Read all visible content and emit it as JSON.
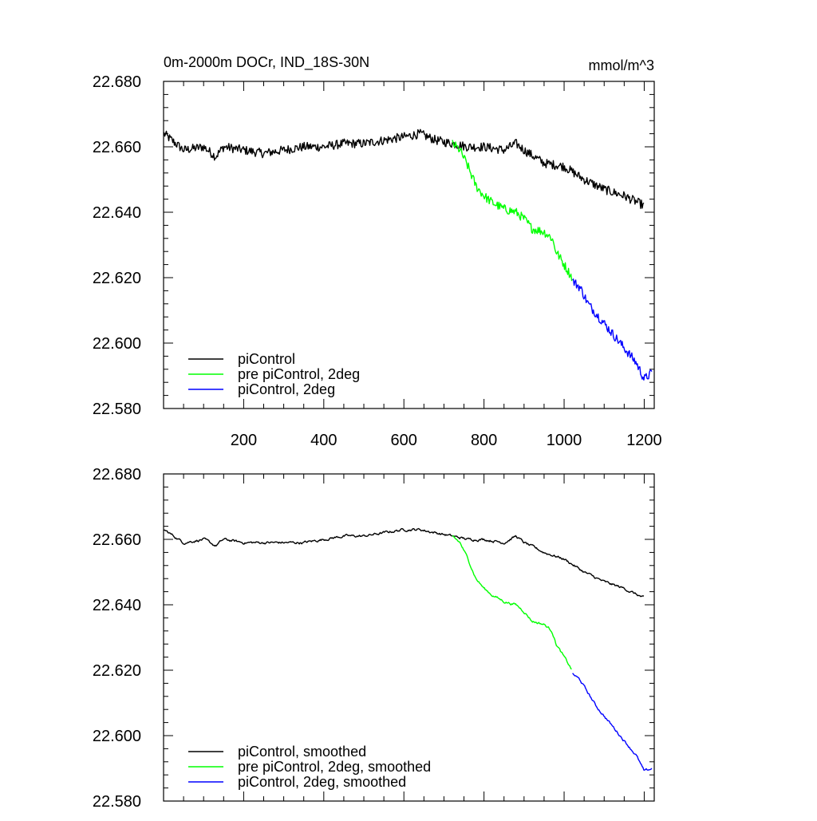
{
  "chart_data": [
    {
      "type": "line",
      "panel": "top",
      "title": "0m-2000m DOCr, IND_18S-30N",
      "units": "mmol/m^3",
      "xlim": [
        0,
        1225
      ],
      "ylim": [
        22.58,
        22.68
      ],
      "x_ticks": [
        200,
        400,
        600,
        800,
        1000,
        1200
      ],
      "x_tick_labels": [
        "200",
        "400",
        "600",
        "800",
        "1000",
        "1200"
      ],
      "y_ticks": [
        22.58,
        22.6,
        22.62,
        22.64,
        22.66,
        22.68
      ],
      "y_tick_labels": [
        "22.580",
        "22.600",
        "22.620",
        "22.640",
        "22.660",
        "22.680"
      ],
      "smoothed": false,
      "legend_position": "bottom-left",
      "series": [
        {
          "name": "piControl",
          "color": "#000000",
          "points": [
            [
              1,
              22.664
            ],
            [
              50,
              22.659
            ],
            [
              100,
              22.66
            ],
            [
              130,
              22.657
            ],
            [
              150,
              22.66
            ],
            [
              200,
              22.659
            ],
            [
              250,
              22.658
            ],
            [
              300,
              22.659
            ],
            [
              350,
              22.66
            ],
            [
              400,
              22.66
            ],
            [
              450,
              22.661
            ],
            [
              500,
              22.661
            ],
            [
              550,
              22.662
            ],
            [
              600,
              22.663
            ],
            [
              640,
              22.664
            ],
            [
              680,
              22.662
            ],
            [
              720,
              22.661
            ],
            [
              760,
              22.66
            ],
            [
              800,
              22.66
            ],
            [
              850,
              22.659
            ],
            [
              880,
              22.661
            ],
            [
              900,
              22.659
            ],
            [
              950,
              22.655
            ],
            [
              1000,
              22.654
            ],
            [
              1050,
              22.65
            ],
            [
              1100,
              22.647
            ],
            [
              1150,
              22.645
            ],
            [
              1200,
              22.642
            ]
          ]
        },
        {
          "name": "pre piControl, 2deg",
          "color": "#00ff00",
          "points": [
            [
              721,
              22.661
            ],
            [
              740,
              22.659
            ],
            [
              760,
              22.654
            ],
            [
              780,
              22.648
            ],
            [
              800,
              22.645
            ],
            [
              820,
              22.643
            ],
            [
              850,
              22.641
            ],
            [
              880,
              22.64
            ],
            [
              900,
              22.638
            ],
            [
              920,
              22.635
            ],
            [
              950,
              22.634
            ],
            [
              970,
              22.632
            ],
            [
              980,
              22.628
            ],
            [
              1000,
              22.624
            ],
            [
              1020,
              22.62
            ]
          ]
        },
        {
          "name": "piControl, 2deg",
          "color": "#0000ff",
          "points": [
            [
              1021,
              22.619
            ],
            [
              1040,
              22.617
            ],
            [
              1060,
              22.612
            ],
            [
              1080,
              22.609
            ],
            [
              1100,
              22.606
            ],
            [
              1120,
              22.603
            ],
            [
              1140,
              22.6
            ],
            [
              1160,
              22.597
            ],
            [
              1180,
              22.594
            ],
            [
              1200,
              22.589
            ],
            [
              1220,
              22.591
            ]
          ]
        }
      ]
    },
    {
      "type": "line",
      "panel": "bottom",
      "xlim": [
        0,
        1225
      ],
      "ylim": [
        22.58,
        22.68
      ],
      "y_ticks": [
        22.58,
        22.6,
        22.62,
        22.64,
        22.66,
        22.68
      ],
      "y_tick_labels": [
        "22.580",
        "22.600",
        "22.620",
        "22.640",
        "22.660",
        "22.680"
      ],
      "smoothed": true,
      "legend_position": "bottom-left",
      "series": [
        {
          "name": "piControl, smoothed",
          "color": "#000000",
          "points": [
            [
              1,
              22.663
            ],
            [
              50,
              22.659
            ],
            [
              100,
              22.66
            ],
            [
              130,
              22.658
            ],
            [
              150,
              22.66
            ],
            [
              200,
              22.659
            ],
            [
              250,
              22.659
            ],
            [
              300,
              22.659
            ],
            [
              350,
              22.659
            ],
            [
              400,
              22.66
            ],
            [
              450,
              22.661
            ],
            [
              500,
              22.661
            ],
            [
              550,
              22.662
            ],
            [
              600,
              22.663
            ],
            [
              640,
              22.663
            ],
            [
              680,
              22.662
            ],
            [
              720,
              22.661
            ],
            [
              760,
              22.66
            ],
            [
              800,
              22.66
            ],
            [
              850,
              22.659
            ],
            [
              880,
              22.661
            ],
            [
              900,
              22.659
            ],
            [
              950,
              22.656
            ],
            [
              1000,
              22.654
            ],
            [
              1050,
              22.65
            ],
            [
              1100,
              22.647
            ],
            [
              1150,
              22.645
            ],
            [
              1200,
              22.642
            ]
          ]
        },
        {
          "name": "pre piControl, 2deg, smoothed",
          "color": "#00ff00",
          "points": [
            [
              721,
              22.661
            ],
            [
              740,
              22.659
            ],
            [
              760,
              22.654
            ],
            [
              780,
              22.648
            ],
            [
              800,
              22.645
            ],
            [
              820,
              22.643
            ],
            [
              850,
              22.641
            ],
            [
              880,
              22.64
            ],
            [
              900,
              22.638
            ],
            [
              920,
              22.635
            ],
            [
              950,
              22.634
            ],
            [
              970,
              22.632
            ],
            [
              980,
              22.628
            ],
            [
              1000,
              22.624
            ],
            [
              1020,
              22.62
            ]
          ]
        },
        {
          "name": "piControl, 2deg, smoothed",
          "color": "#0000ff",
          "points": [
            [
              1021,
              22.619
            ],
            [
              1040,
              22.617
            ],
            [
              1060,
              22.613
            ],
            [
              1080,
              22.609
            ],
            [
              1100,
              22.606
            ],
            [
              1120,
              22.603
            ],
            [
              1140,
              22.6
            ],
            [
              1160,
              22.597
            ],
            [
              1180,
              22.594
            ],
            [
              1200,
              22.589
            ],
            [
              1220,
              22.59
            ]
          ]
        }
      ]
    }
  ]
}
